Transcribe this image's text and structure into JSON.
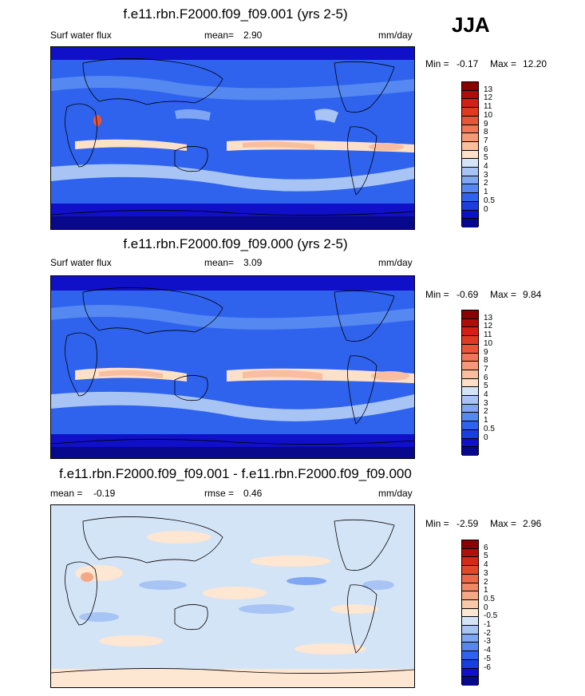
{
  "season": "JJA",
  "colors": {
    "seq": [
      "#08088c",
      "#1010c8",
      "#1a3fe0",
      "#2f63ee",
      "#5588f0",
      "#7ea6f2",
      "#a8c4f4",
      "#d4e4f7",
      "#fde0c8",
      "#f9bea0",
      "#f49a78",
      "#ef7656",
      "#e8563a",
      "#e03a24",
      "#d22014",
      "#b00c0a",
      "#8b0000"
    ],
    "div": [
      "#08088c",
      "#1010c8",
      "#1a3fe0",
      "#2f63ee",
      "#5588f0",
      "#7ea6f2",
      "#a8c4f4",
      "#d4e4f7",
      "#fde6d2",
      "#f9c8a8",
      "#f5a886",
      "#f08866",
      "#eb6848",
      "#e3482e",
      "#d42a18",
      "#b0120a",
      "#8b0000"
    ]
  },
  "panels": [
    {
      "title": "f.e11.rbn.F2000.f09_f09.001 (yrs 2-5)",
      "left_label": "Surf water flux",
      "mean_label": "mean=",
      "mean_value": "2.90",
      "units": "mm/day",
      "min_label": "Min = ",
      "min_value": "-0.17",
      "max_label": "Max = ",
      "max_value": "12.20",
      "scale": "seq",
      "cbar_labels": [
        "13",
        "12",
        "11",
        "10",
        "9",
        "8",
        "7",
        "6",
        "5",
        "4",
        "3",
        "2",
        "1",
        "0.5",
        "0"
      ]
    },
    {
      "title": "f.e11.rbn.F2000.f09_f09.000 (yrs 2-5)",
      "left_label": "Surf water flux",
      "mean_label": "mean=",
      "mean_value": "3.09",
      "units": "mm/day",
      "min_label": "Min = ",
      "min_value": "-0.69",
      "max_label": "Max = ",
      "max_value": "9.84",
      "scale": "seq",
      "cbar_labels": [
        "13",
        "12",
        "11",
        "10",
        "9",
        "8",
        "7",
        "6",
        "5",
        "4",
        "3",
        "2",
        "1",
        "0.5",
        "0"
      ]
    },
    {
      "title": "f.e11.rbn.F2000.f09_f09.001 - f.e11.rbn.F2000.f09_f09.000",
      "left_label": "mean = ",
      "left_value": "-0.19",
      "mid_label": "rmse = ",
      "mid_value": "0.46",
      "units": "mm/day",
      "min_label": "Min = ",
      "min_value": "-2.59",
      "max_label": "Max = ",
      "max_value": "2.96",
      "scale": "div",
      "cbar_labels": [
        "6",
        "5",
        "4",
        "3",
        "2",
        "1",
        "0.5",
        "0",
        "-0.5",
        "-1",
        "-2",
        "-3",
        "-4",
        "-5",
        "-6"
      ]
    }
  ],
  "chart_data": [
    {
      "type": "heatmap",
      "title": "f.e11.rbn.F2000.f09_f09.001 (yrs 2-5)",
      "variable": "Surf water flux",
      "units": "mm/day",
      "mean": 2.9,
      "min": -0.17,
      "max": 12.2,
      "levels": [
        0,
        0.5,
        1,
        2,
        3,
        4,
        5,
        6,
        7,
        8,
        9,
        10,
        11,
        12,
        13
      ]
    },
    {
      "type": "heatmap",
      "title": "f.e11.rbn.F2000.f09_f09.000 (yrs 2-5)",
      "variable": "Surf water flux",
      "units": "mm/day",
      "mean": 3.09,
      "min": -0.69,
      "max": 9.84,
      "levels": [
        0,
        0.5,
        1,
        2,
        3,
        4,
        5,
        6,
        7,
        8,
        9,
        10,
        11,
        12,
        13
      ]
    },
    {
      "type": "heatmap",
      "title": "f.e11.rbn.F2000.f09_f09.001 - f.e11.rbn.F2000.f09_f09.000",
      "units": "mm/day",
      "mean": -0.19,
      "rmse": 0.46,
      "min": -2.59,
      "max": 2.96,
      "levels": [
        -6,
        -5,
        -4,
        -3,
        -2,
        -1,
        -0.5,
        0,
        0.5,
        1,
        2,
        3,
        4,
        5,
        6
      ]
    }
  ]
}
